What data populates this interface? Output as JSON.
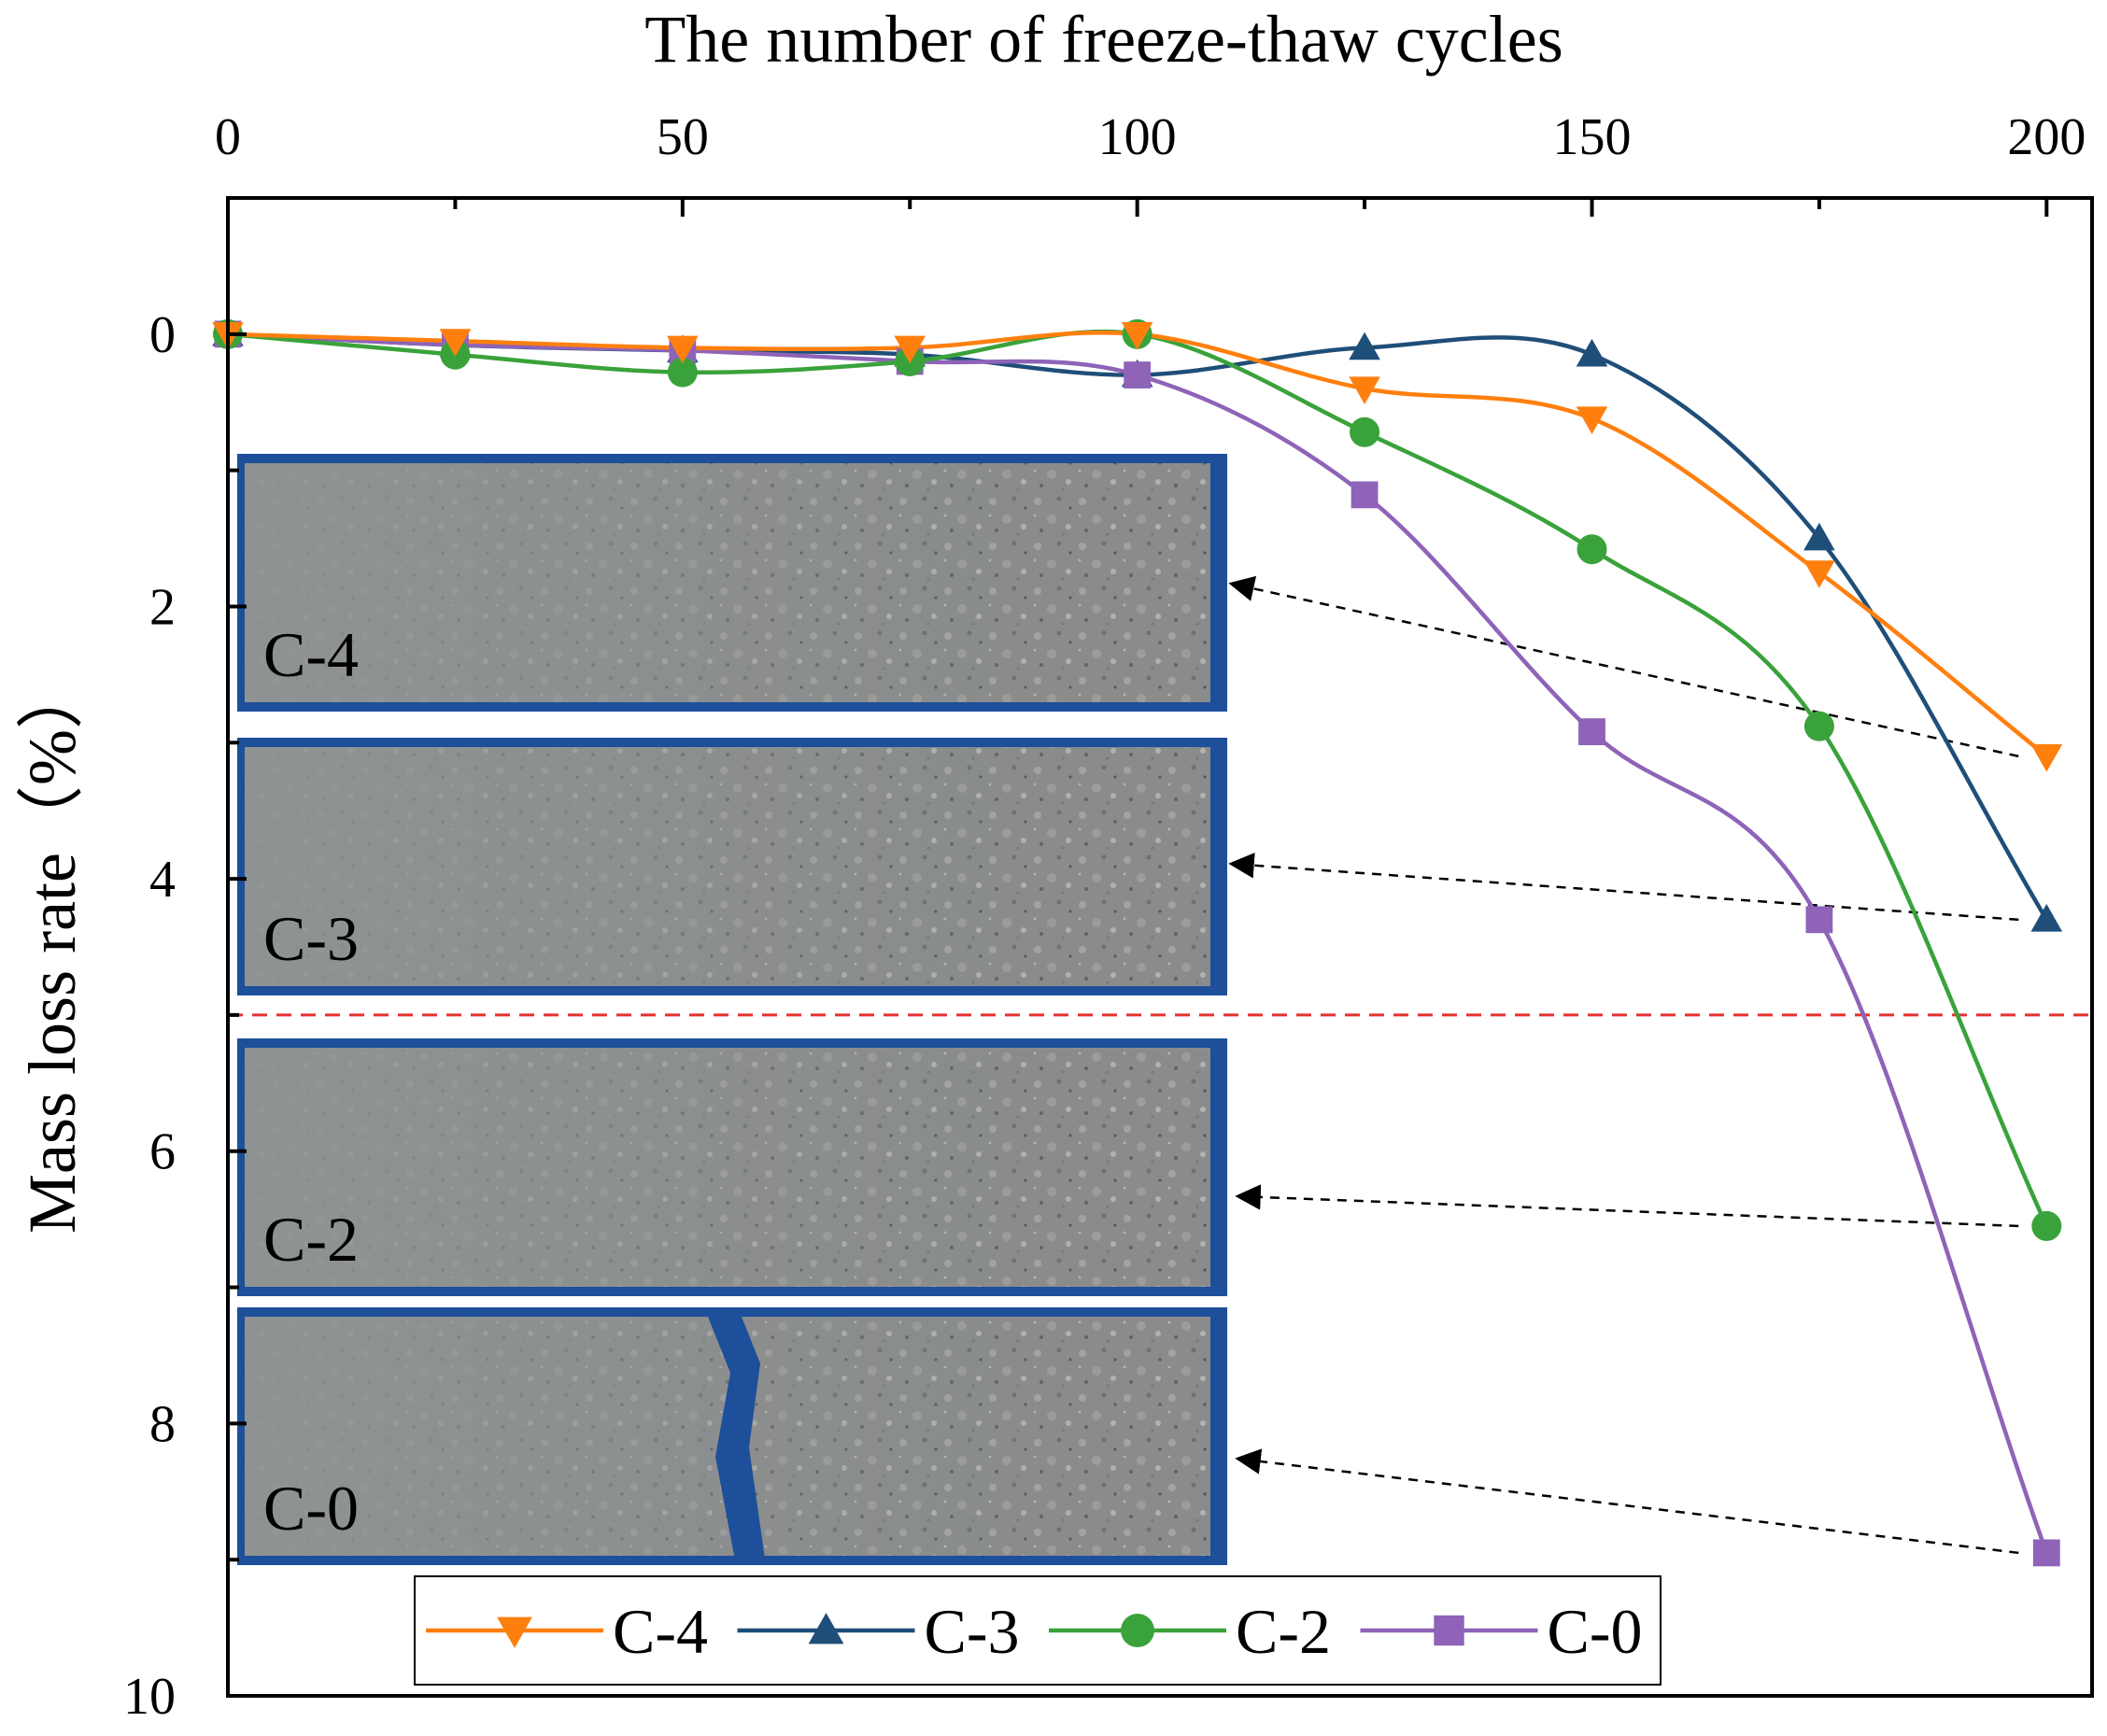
{
  "chart_data": {
    "type": "line",
    "xlabel": "The number of freeze-thaw cycles",
    "ylabel": "Mass loss rate（%）",
    "xaxis_position": "top",
    "yaxis_inverted": true,
    "xlim": [
      0,
      205
    ],
    "ylim": [
      -1,
      10
    ],
    "xticks": [
      0,
      50,
      100,
      150,
      200
    ],
    "yticks": [
      0,
      2,
      4,
      6,
      8,
      10
    ],
    "x": [
      0,
      25,
      50,
      75,
      100,
      125,
      150,
      175,
      200
    ],
    "series": [
      {
        "name": "C-4",
        "marker": "triangle-down",
        "color": "#ff7f0e",
        "values": [
          0.0,
          0.05,
          0.1,
          0.1,
          0.0,
          0.4,
          0.62,
          1.75,
          3.1
        ]
      },
      {
        "name": "C-3",
        "marker": "triangle-up",
        "color": "#1f4e79",
        "values": [
          0.0,
          0.08,
          0.12,
          0.15,
          0.3,
          0.1,
          0.15,
          1.5,
          4.3
        ]
      },
      {
        "name": "C-2",
        "marker": "circle",
        "color": "#3aa23a",
        "values": [
          0.0,
          0.15,
          0.28,
          0.2,
          0.0,
          0.72,
          1.58,
          2.88,
          6.55
        ]
      },
      {
        "name": "C-0",
        "marker": "square",
        "color": "#8e63b8",
        "values": [
          0.0,
          0.08,
          0.12,
          0.2,
          0.3,
          1.18,
          2.92,
          4.3,
          8.95
        ]
      }
    ],
    "threshold": {
      "y": 5,
      "color": "#e53030",
      "style": "dashed"
    },
    "inset_photos": [
      {
        "label": "C-4",
        "points_to_series": "C-4"
      },
      {
        "label": "C-3",
        "points_to_series": "C-3"
      },
      {
        "label": "C-2",
        "points_to_series": "C-2"
      },
      {
        "label": "C-0",
        "points_to_series": "C-0"
      }
    ],
    "legend_placement": "bottom-center",
    "grid": false
  }
}
